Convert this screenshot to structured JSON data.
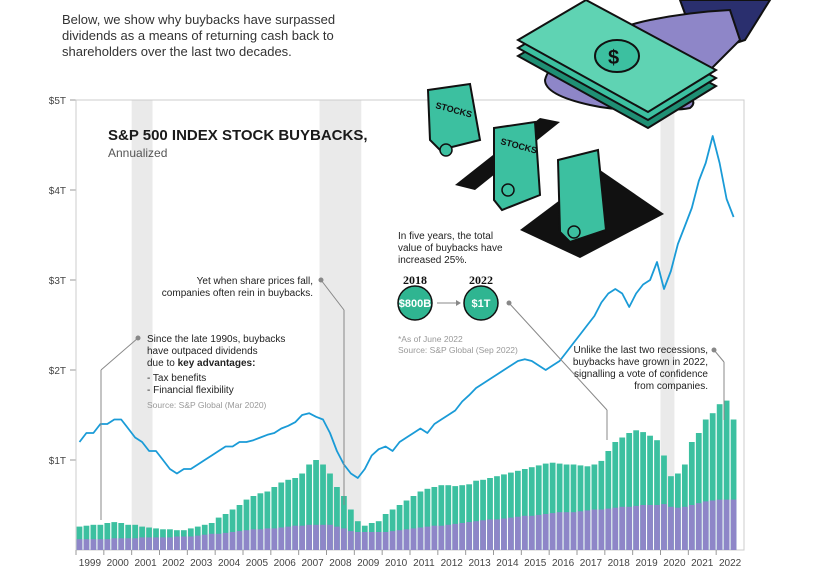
{
  "intro": "Below, we show why buybacks have surpassed dividends as a means of returning cash back to shareholders over the last two decades.",
  "colors": {
    "line": "#1a9bd7",
    "buyback": "#3cc0a0",
    "dividend": "#8e86c8",
    "recession": "#dcdcdc",
    "bubble": "#2fb591",
    "money": "#3cc0a0",
    "hand": "#8e86c8"
  },
  "illustration": {
    "icons": [
      "hand-icon",
      "money-stack-icon",
      "stock-certificate-icon"
    ],
    "certificate_labels": [
      "STOCKS",
      "STOCKS"
    ]
  },
  "annotations": {
    "growth": [
      "In five years, the total",
      "value of buybacks have",
      "increased 25%."
    ],
    "growth_bold": "25%",
    "from_year": "2018",
    "to_year": "2022",
    "from_value": "$800B",
    "to_value": "$1T",
    "growth_note": "*As of June 2022",
    "growth_source": "Source: S&P Global (Sep 2022)",
    "share_fall": [
      "Yet when share prices fall,",
      "companies often rein in buybacks."
    ],
    "late_90s": [
      "Since the late 1990s, buybacks",
      "have outpaced dividends",
      "due to"
    ],
    "key_adv": "key advantages:",
    "advantages": [
      "- Tax benefits",
      "- Financial flexibility"
    ],
    "late_90s_source": "Source: S&P Global (Mar 2020)",
    "recessions": [
      "Unlike the last two recessions,",
      "buybacks have grown in 2022,",
      "signalling a vote of confidence",
      "from companies."
    ]
  },
  "chart_data": {
    "type": "bar",
    "title": "S&P 500 INDEX STOCK BUYBACKS,",
    "subtitle": "Annualized",
    "ylabel": "",
    "xlabel": "",
    "y_ticks": [
      "$5T",
      "$4T",
      "$3T",
      "$2T",
      "$1T"
    ],
    "y_tick_values": [
      5,
      4,
      3,
      2,
      1
    ],
    "ylim": [
      0,
      5
    ],
    "x_ticks": [
      "1999",
      "2000",
      "2001",
      "2002",
      "2003",
      "2004",
      "2005",
      "2006",
      "2007",
      "2008",
      "2009",
      "2010",
      "2011",
      "2012",
      "2013",
      "2014",
      "2015",
      "2016",
      "2017",
      "2018",
      "2019",
      "2020",
      "2021",
      "2022"
    ],
    "quarters_per_year": 4,
    "first_year": 1999,
    "recessions": [
      [
        2001.0,
        2001.75
      ],
      [
        2007.75,
        2009.25
      ],
      [
        2020.0,
        2020.5
      ]
    ],
    "line_units": "index points, tracked against the $T axis",
    "series": [
      {
        "name": "Buybacks",
        "stacked_total": true,
        "values": [
          0.26,
          0.27,
          0.28,
          0.28,
          0.3,
          0.31,
          0.3,
          0.28,
          0.28,
          0.26,
          0.25,
          0.24,
          0.23,
          0.23,
          0.22,
          0.22,
          0.24,
          0.26,
          0.28,
          0.3,
          0.36,
          0.4,
          0.45,
          0.5,
          0.56,
          0.6,
          0.63,
          0.65,
          0.7,
          0.75,
          0.78,
          0.8,
          0.85,
          0.95,
          1.0,
          0.95,
          0.85,
          0.7,
          0.6,
          0.45,
          0.32,
          0.27,
          0.3,
          0.32,
          0.4,
          0.45,
          0.5,
          0.55,
          0.6,
          0.65,
          0.68,
          0.7,
          0.72,
          0.72,
          0.71,
          0.72,
          0.73,
          0.77,
          0.78,
          0.8,
          0.82,
          0.84,
          0.86,
          0.88,
          0.9,
          0.92,
          0.94,
          0.96,
          0.97,
          0.96,
          0.95,
          0.95,
          0.94,
          0.93,
          0.95,
          0.99,
          1.1,
          1.2,
          1.25,
          1.3,
          1.33,
          1.31,
          1.27,
          1.22,
          1.05,
          0.82,
          0.85,
          0.95,
          1.2,
          1.3,
          1.45,
          1.52,
          1.62,
          1.66,
          1.45
        ]
      },
      {
        "name": "Dividends",
        "values": [
          0.12,
          0.12,
          0.12,
          0.12,
          0.12,
          0.13,
          0.13,
          0.13,
          0.13,
          0.14,
          0.14,
          0.14,
          0.14,
          0.14,
          0.15,
          0.15,
          0.15,
          0.16,
          0.17,
          0.18,
          0.18,
          0.19,
          0.2,
          0.21,
          0.22,
          0.23,
          0.23,
          0.24,
          0.24,
          0.25,
          0.26,
          0.27,
          0.27,
          0.28,
          0.28,
          0.28,
          0.28,
          0.26,
          0.24,
          0.21,
          0.2,
          0.2,
          0.2,
          0.2,
          0.2,
          0.21,
          0.22,
          0.23,
          0.24,
          0.25,
          0.26,
          0.27,
          0.27,
          0.28,
          0.29,
          0.3,
          0.31,
          0.32,
          0.33,
          0.34,
          0.34,
          0.35,
          0.36,
          0.37,
          0.38,
          0.38,
          0.39,
          0.4,
          0.41,
          0.42,
          0.42,
          0.42,
          0.43,
          0.44,
          0.45,
          0.45,
          0.46,
          0.47,
          0.48,
          0.48,
          0.49,
          0.5,
          0.5,
          0.5,
          0.51,
          0.48,
          0.47,
          0.48,
          0.5,
          0.52,
          0.54,
          0.55,
          0.56,
          0.56,
          0.56
        ]
      },
      {
        "name": "S&P 500 Index",
        "type": "line",
        "values": [
          1.2,
          1.3,
          1.3,
          1.4,
          1.4,
          1.45,
          1.45,
          1.35,
          1.25,
          1.2,
          1.1,
          1.1,
          1.0,
          0.9,
          0.85,
          0.9,
          0.9,
          0.95,
          1.0,
          1.05,
          1.1,
          1.15,
          1.15,
          1.2,
          1.2,
          1.22,
          1.25,
          1.28,
          1.3,
          1.35,
          1.38,
          1.42,
          1.5,
          1.52,
          1.48,
          1.45,
          1.3,
          1.1,
          0.95,
          0.85,
          0.8,
          0.9,
          1.05,
          1.12,
          1.15,
          1.1,
          1.2,
          1.25,
          1.3,
          1.35,
          1.3,
          1.4,
          1.45,
          1.5,
          1.55,
          1.65,
          1.72,
          1.8,
          1.85,
          1.9,
          1.95,
          2.0,
          2.05,
          2.1,
          2.12,
          2.1,
          2.05,
          2.0,
          2.05,
          2.1,
          2.2,
          2.3,
          2.4,
          2.5,
          2.6,
          2.75,
          2.85,
          2.9,
          2.85,
          2.7,
          2.85,
          2.95,
          3.0,
          3.2,
          2.9,
          3.1,
          3.4,
          3.6,
          3.8,
          4.1,
          4.3,
          4.6,
          4.3,
          3.9,
          3.7
        ]
      }
    ]
  }
}
